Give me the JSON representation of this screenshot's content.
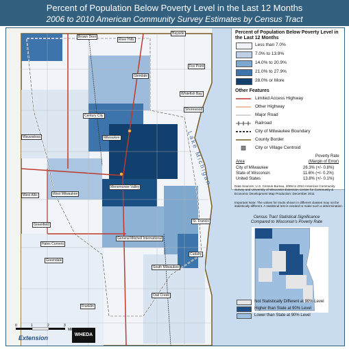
{
  "title": "Percent of Population Below Poverty Level in the Last 12 Months",
  "subtitle": "2006 to 2010 American Community Survey Estimates by Census Tract",
  "lake_label": "Lake Michigan",
  "places": [
    "Brown Deer",
    "River Hills",
    "Bayside",
    "Fox Point",
    "Glendale",
    "Whitefish Bay",
    "Shorewood",
    "Milwaukee",
    "Wauwatosa",
    "Menomonee Valley",
    "West Allis",
    "West Milwaukee",
    "Greenfield",
    "Hales Corners",
    "Greendale",
    "General Mitchell International",
    "South Milwaukee",
    "Cudahy",
    "St. Francis",
    "Oak Creek",
    "Franklin",
    "Century City"
  ],
  "legend": {
    "title": "Percent of Population Below Poverty Level in the Last 12 Months",
    "classes": [
      {
        "label": "Less than 7.0%",
        "color": "#eef2f7"
      },
      {
        "label": "7.0% to 13.9%",
        "color": "#bcd0e6"
      },
      {
        "label": "14.0% to 20.9%",
        "color": "#7fa8cf"
      },
      {
        "label": "21.0% to 27.9%",
        "color": "#3d74ab"
      },
      {
        "label": "28.0% or More",
        "color": "#11406f"
      }
    ],
    "features_title": "Other Features",
    "features": [
      {
        "label": "Limited Access Highway",
        "kind": "highway"
      },
      {
        "label": "Other Highway",
        "kind": "other"
      },
      {
        "label": "Major Road",
        "kind": "major"
      },
      {
        "label": "Railroad",
        "kind": "rail"
      },
      {
        "label": "City of Milwaukee Boundary",
        "kind": "cityb"
      },
      {
        "label": "County Border",
        "kind": "county"
      },
      {
        "label": "City or Village Centroid",
        "kind": "centroid"
      }
    ]
  },
  "rates": {
    "area_header": "Area",
    "rate_header1": "Poverty Rate",
    "rate_header2": "(Margin of Error)",
    "rows": [
      {
        "area": "City of Milwaukee",
        "rate": "26.3% (+/- 0.8%)"
      },
      {
        "area": "State of Wisconsin",
        "rate": "11.6% (+/- 0.2%)"
      },
      {
        "area": "United States",
        "rate": "13.8% (+/- 0.1%)"
      }
    ]
  },
  "sources": "Data Sources: U.S. Census Bureau, 2006 to 2010 American Community Survey and University of Wisconsin-Extension Center for Community & Economic Development Map Production: December 2011",
  "note": "Important Note: The values for tracts shown in different classes may not be statistically different. A statistical test is needed to make such a determination.",
  "inset": {
    "title1": "Census Tract Statistical Significance",
    "title2": "Compared to Wisconsin's Poverty Rate",
    "legend": [
      {
        "label": "Not Statistically Different at 90% Level",
        "color": "#e6e6e6"
      },
      {
        "label": "Higher than State at 90% Level",
        "color": "#1d4f86"
      },
      {
        "label": "Lower than State at 90% Level",
        "color": "#9fbfe0"
      }
    ]
  },
  "scale": {
    "ticks": [
      "0",
      "1",
      "2",
      "3"
    ],
    "unit": "Miles"
  },
  "logos": {
    "extension": "Extension",
    "wheda": "WHEDA"
  }
}
